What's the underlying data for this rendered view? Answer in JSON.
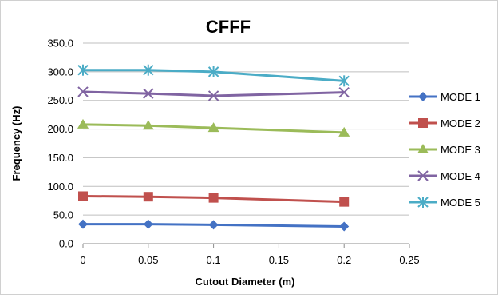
{
  "chart_data": {
    "type": "line",
    "title": "CFFF",
    "xlabel": "Cutout Diameter (m)",
    "ylabel": "Frequency (Hz)",
    "xlim": [
      0,
      0.25
    ],
    "ylim": [
      0,
      350
    ],
    "x_ticks": [
      "0",
      "0.05",
      "0.1",
      "0.15",
      "0.2",
      "0.25"
    ],
    "y_ticks": [
      "0.0",
      "50.0",
      "100.0",
      "150.0",
      "200.0",
      "250.0",
      "300.0",
      "350.0"
    ],
    "grid": "horizontal",
    "legend_position": "right",
    "x": [
      0,
      0.05,
      0.1,
      0.2
    ],
    "series": [
      {
        "name": "MODE 1",
        "color": "#4472C4",
        "marker": "diamond",
        "values": [
          34,
          34,
          33,
          30
        ]
      },
      {
        "name": "MODE 2",
        "color": "#C0504D",
        "marker": "square",
        "values": [
          83,
          82,
          80,
          73
        ]
      },
      {
        "name": "MODE 3",
        "color": "#9BBB59",
        "marker": "triangle",
        "values": [
          208,
          206,
          202,
          194
        ]
      },
      {
        "name": "MODE 4",
        "color": "#8064A2",
        "marker": "x",
        "values": [
          265,
          262,
          258,
          264
        ]
      },
      {
        "name": "MODE 5",
        "color": "#4BACC6",
        "marker": "star",
        "values": [
          303,
          303,
          300,
          284
        ]
      }
    ]
  }
}
